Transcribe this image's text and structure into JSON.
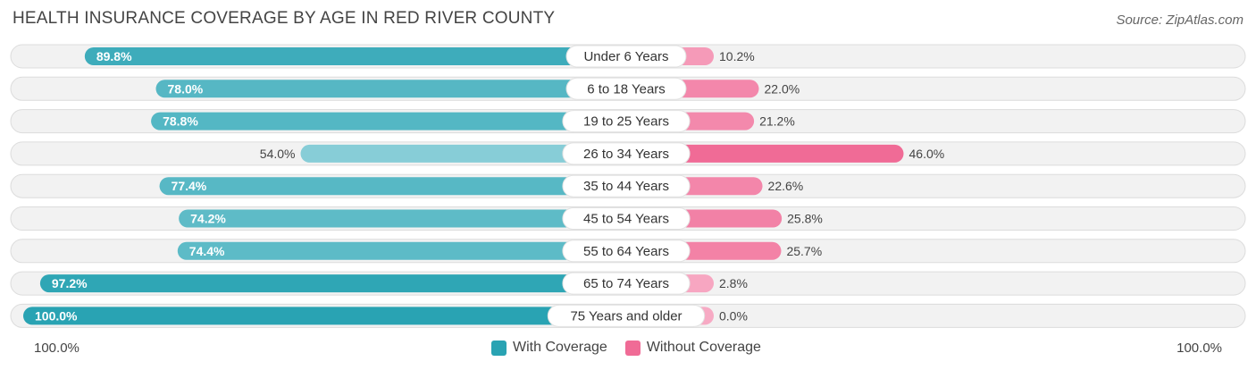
{
  "title": "HEALTH INSURANCE COVERAGE BY AGE IN RED RIVER COUNTY",
  "source": "Source: ZipAtlas.com",
  "chart_data": {
    "type": "bar",
    "orientation": "horizontal-diverging",
    "categories": [
      "Under 6 Years",
      "6 to 18 Years",
      "19 to 25 Years",
      "26 to 34 Years",
      "35 to 44 Years",
      "45 to 54 Years",
      "55 to 64 Years",
      "65 to 74 Years",
      "75 Years and older"
    ],
    "series": [
      {
        "name": "With Coverage",
        "values": [
          89.8,
          78.0,
          78.8,
          54.0,
          77.4,
          74.2,
          74.4,
          97.2,
          100.0
        ],
        "labels": [
          "89.8%",
          "78.0%",
          "78.8%",
          "54.0%",
          "77.4%",
          "74.2%",
          "74.4%",
          "97.2%",
          "100.0%"
        ]
      },
      {
        "name": "Without Coverage",
        "values": [
          10.2,
          22.0,
          21.2,
          46.0,
          22.6,
          25.8,
          25.7,
          2.8,
          0.0
        ],
        "labels": [
          "10.2%",
          "22.0%",
          "21.2%",
          "46.0%",
          "22.6%",
          "25.8%",
          "25.7%",
          "2.8%",
          "0.0%"
        ]
      }
    ],
    "xlim": [
      -100,
      100
    ],
    "axis_left_label": "100.0%",
    "axis_right_label": "100.0%",
    "legend_position": "bottom-center"
  },
  "colors": {
    "with_dark": "#29a3b3",
    "with_light": "#8fd1da",
    "without_dark": "#f06b96",
    "without_light": "#f7aac4",
    "row_bg": "#f2f2f2",
    "row_border": "#dcdcdc"
  }
}
